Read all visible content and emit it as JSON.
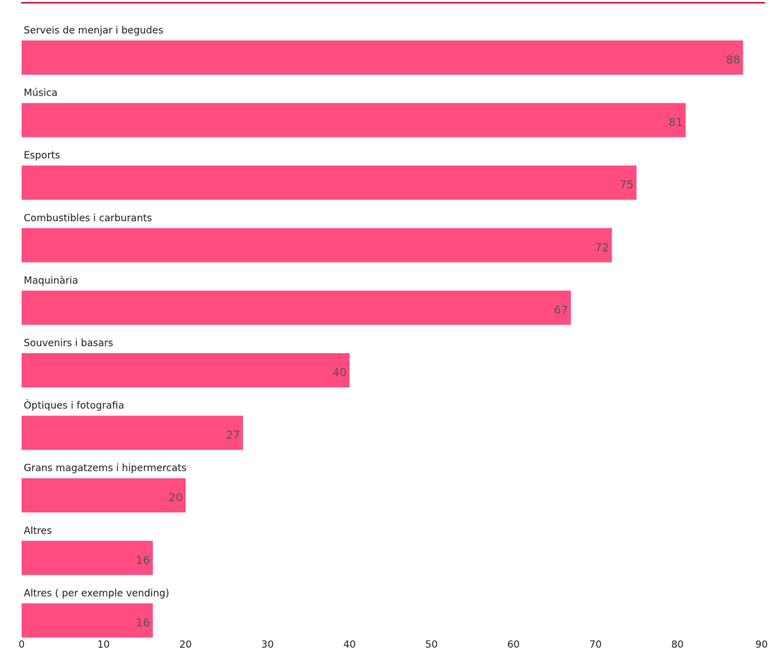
{
  "chart_data": {
    "type": "bar",
    "orientation": "horizontal",
    "title": "",
    "xlabel": "",
    "ylabel": "",
    "categories": [
      "Serveis de menjar i begudes",
      "Música",
      "Esports",
      "Combustibles i carburants",
      "Maquinària",
      "Souvenirs i basars",
      "Òptiques i fotografia",
      "Grans magatzems i hipermercats",
      "Altres",
      "Altres ( per exemple vending)"
    ],
    "values": [
      88,
      81,
      75,
      72,
      67,
      40,
      27,
      20,
      16,
      16
    ],
    "value_labels": [
      "88",
      "81",
      "75",
      "72",
      "67",
      "40",
      "27",
      "20",
      "16",
      "16"
    ],
    "xlim": [
      0,
      90
    ],
    "xticks": [
      "0",
      "10",
      "20",
      "30",
      "40",
      "50",
      "60",
      "70",
      "80",
      "90"
    ],
    "grid": false,
    "legend": "none",
    "colors": {
      "bar": "#ff4d80",
      "top_rule": "#c8102e",
      "value_text": "#555555",
      "text": "#222222"
    }
  }
}
